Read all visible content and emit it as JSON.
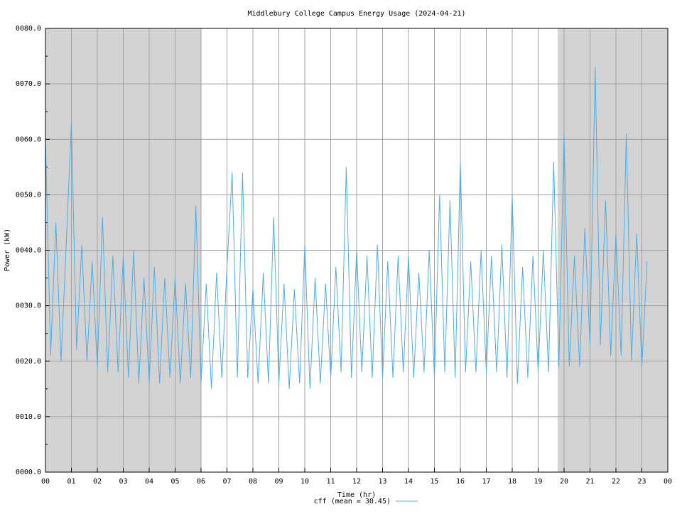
{
  "chart_data": {
    "type": "line",
    "title": "Middlebury College Campus Energy Usage (2024-04-21)",
    "x_label": "Time (hr)",
    "y_label": "Power (kW)",
    "xlim": [
      0,
      24
    ],
    "xticks": [
      {
        "value": 0,
        "label": "00"
      },
      {
        "value": 1,
        "label": "01"
      },
      {
        "value": 2,
        "label": "02"
      },
      {
        "value": 3,
        "label": "03"
      },
      {
        "value": 4,
        "label": "04"
      },
      {
        "value": 5,
        "label": "05"
      },
      {
        "value": 6,
        "label": "06"
      },
      {
        "value": 7,
        "label": "07"
      },
      {
        "value": 8,
        "label": "08"
      },
      {
        "value": 9,
        "label": "09"
      },
      {
        "value": 10,
        "label": "10"
      },
      {
        "value": 11,
        "label": "11"
      },
      {
        "value": 12,
        "label": "12"
      },
      {
        "value": 13,
        "label": "13"
      },
      {
        "value": 14,
        "label": "14"
      },
      {
        "value": 15,
        "label": "15"
      },
      {
        "value": 16,
        "label": "16"
      },
      {
        "value": 17,
        "label": "17"
      },
      {
        "value": 18,
        "label": "18"
      },
      {
        "value": 19,
        "label": "19"
      },
      {
        "value": 20,
        "label": "20"
      },
      {
        "value": 21,
        "label": "21"
      },
      {
        "value": 22,
        "label": "22"
      },
      {
        "value": 23,
        "label": "23"
      },
      {
        "value": 24,
        "label": "00"
      }
    ],
    "ylim": [
      0,
      80
    ],
    "yticks": [
      {
        "value": 0,
        "label": "0000.0"
      },
      {
        "value": 10,
        "label": "0010.0"
      },
      {
        "value": 20,
        "label": "0020.0"
      },
      {
        "value": 30,
        "label": "0030.0"
      },
      {
        "value": 40,
        "label": "0040.0"
      },
      {
        "value": 50,
        "label": "0050.0"
      },
      {
        "value": 60,
        "label": "0060.0"
      },
      {
        "value": 70,
        "label": "0070.0"
      },
      {
        "value": 80,
        "label": "0080.0"
      }
    ],
    "grid": true,
    "shaded_regions": [
      [
        0,
        6
      ],
      [
        19.75,
        24
      ]
    ],
    "x": [
      0,
      0.2,
      0.4,
      0.6,
      0.8,
      1,
      1.2,
      1.4,
      1.6,
      1.8,
      2,
      2.2,
      2.4,
      2.6,
      2.8,
      3,
      3.2,
      3.4,
      3.6,
      3.8,
      4,
      4.2,
      4.4,
      4.6,
      4.8,
      5,
      5.2,
      5.4,
      5.6,
      5.8,
      6,
      6.2,
      6.4,
      6.6,
      6.8,
      7,
      7.2,
      7.4,
      7.6,
      7.8,
      8,
      8.2,
      8.4,
      8.6,
      8.8,
      9,
      9.2,
      9.4,
      9.6,
      9.8,
      10,
      10.2,
      10.4,
      10.6,
      10.8,
      11,
      11.2,
      11.4,
      11.6,
      11.8,
      12,
      12.2,
      12.4,
      12.6,
      12.8,
      13,
      13.2,
      13.4,
      13.6,
      13.8,
      14,
      14.2,
      14.4,
      14.6,
      14.8,
      15,
      15.2,
      15.4,
      15.6,
      15.8,
      16,
      16.2,
      16.4,
      16.6,
      16.8,
      17,
      17.2,
      17.4,
      17.6,
      17.8,
      18,
      18.2,
      18.4,
      18.6,
      18.8,
      19,
      19.2,
      19.4,
      19.6,
      19.8,
      20,
      20.2,
      20.4,
      20.6,
      20.8,
      21,
      21.2,
      21.4,
      21.6,
      21.8,
      22,
      22.2,
      22.4,
      22.6,
      22.8,
      23,
      23.2
    ],
    "series": [
      {
        "name": "cff (mean = 30.45)",
        "color": "#4eaee6",
        "values": [
          60,
          21,
          45,
          20,
          41,
          63,
          22,
          41,
          20,
          38,
          19,
          46,
          18,
          39,
          18,
          39,
          17,
          40,
          16,
          35,
          16,
          37,
          16,
          35,
          17,
          35,
          16,
          34,
          17,
          48,
          16,
          34,
          15,
          36,
          17,
          37,
          54,
          17,
          54,
          17,
          33,
          16,
          36,
          16,
          46,
          16,
          34,
          15,
          33,
          16,
          41,
          15,
          35,
          16,
          34,
          17,
          37,
          18,
          55,
          17,
          40,
          18,
          39,
          17,
          41,
          17,
          38,
          17,
          39,
          18,
          39,
          17,
          36,
          18,
          40,
          17,
          50,
          18,
          49,
          17,
          56,
          18,
          38,
          18,
          40,
          18,
          39,
          18,
          41,
          17,
          50,
          16,
          37,
          17,
          39,
          18,
          40,
          18,
          56,
          19,
          61,
          19,
          39,
          19,
          44,
          23,
          73,
          23,
          49,
          21,
          43,
          21,
          61,
          20,
          43,
          19,
          38
        ]
      }
    ]
  }
}
